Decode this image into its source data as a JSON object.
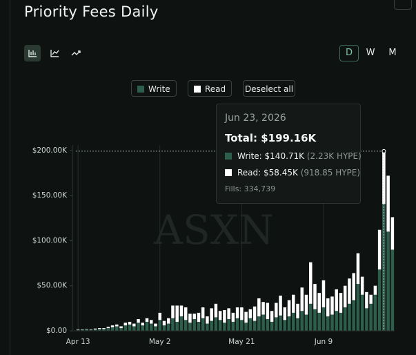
{
  "header": {
    "title": "Priority Fees Daily",
    "ranges": [
      "D",
      "W",
      "M"
    ]
  },
  "legend_buttons": {
    "deselect": "Deselect all"
  },
  "chart_data": {
    "type": "bar",
    "stacked": true,
    "watermark": "ASXN",
    "categories": [
      "Apr 13",
      null,
      null,
      null,
      null,
      null,
      null,
      null,
      null,
      null,
      null,
      null,
      null,
      null,
      null,
      null,
      null,
      null,
      null,
      "May 2",
      null,
      null,
      null,
      null,
      null,
      null,
      null,
      null,
      null,
      null,
      null,
      null,
      null,
      null,
      null,
      null,
      null,
      null,
      "May 21",
      null,
      null,
      null,
      null,
      null,
      null,
      null,
      null,
      null,
      null,
      null,
      null,
      null,
      null,
      null,
      null,
      null,
      null,
      "Jun 9",
      null,
      null,
      null,
      null,
      null,
      null,
      null,
      null,
      null,
      null,
      null,
      null,
      null,
      null,
      null,
      null
    ],
    "series": [
      {
        "name": "Write",
        "color": "#2d5e4c",
        "values": [
          1,
          1,
          1.5,
          1,
          1.5,
          2,
          2,
          3,
          4,
          5,
          3,
          6,
          7,
          5,
          9,
          6,
          10,
          8,
          5,
          12,
          6,
          8,
          14,
          10,
          16,
          12,
          9,
          13,
          10,
          14,
          8,
          11,
          15,
          12,
          9,
          13,
          10,
          14,
          12,
          9,
          14,
          11,
          16,
          18,
          13,
          10,
          15,
          17,
          12,
          16,
          20,
          14,
          22,
          18,
          30,
          24,
          20,
          26,
          16,
          18,
          22,
          20,
          26,
          30,
          34,
          52,
          40,
          25,
          30,
          40,
          68,
          140.71,
          110,
          90
        ]
      },
      {
        "name": "Read",
        "color": "#ffffff",
        "values": [
          0.5,
          0.5,
          0.5,
          0.5,
          1,
          1,
          1,
          1.5,
          2,
          2,
          2,
          3,
          3,
          3,
          4,
          3,
          4,
          4,
          3,
          8,
          5,
          6,
          14,
          18,
          12,
          14,
          10,
          6,
          10,
          12,
          8,
          14,
          15,
          10,
          14,
          12,
          10,
          12,
          14,
          12,
          10,
          16,
          20,
          14,
          18,
          12,
          16,
          22,
          14,
          18,
          20,
          16,
          26,
          22,
          46,
          28,
          22,
          30,
          20,
          20,
          24,
          22,
          24,
          28,
          30,
          34,
          20,
          18,
          10,
          10,
          44,
          58.45,
          62,
          36
        ]
      }
    ],
    "ylim": [
      0,
      206
    ],
    "yticks": [
      {
        "value": 0,
        "label": "$0.00"
      },
      {
        "value": 50,
        "label": "$50.00K"
      },
      {
        "value": 100,
        "label": "$100.00K"
      },
      {
        "value": 150,
        "label": "$150.00K"
      },
      {
        "value": 200,
        "label": "$200.00K"
      }
    ],
    "grid": true
  },
  "tooltip": {
    "date": "Jun 23, 2026",
    "total": "Total: $199.16K",
    "write": "Write: $140.71K",
    "write_hype": "(2.23K HYPE)",
    "read": "Read: $58.45K",
    "read_hype": "(918.85 HYPE)",
    "fills": "Fills: 334,739"
  }
}
